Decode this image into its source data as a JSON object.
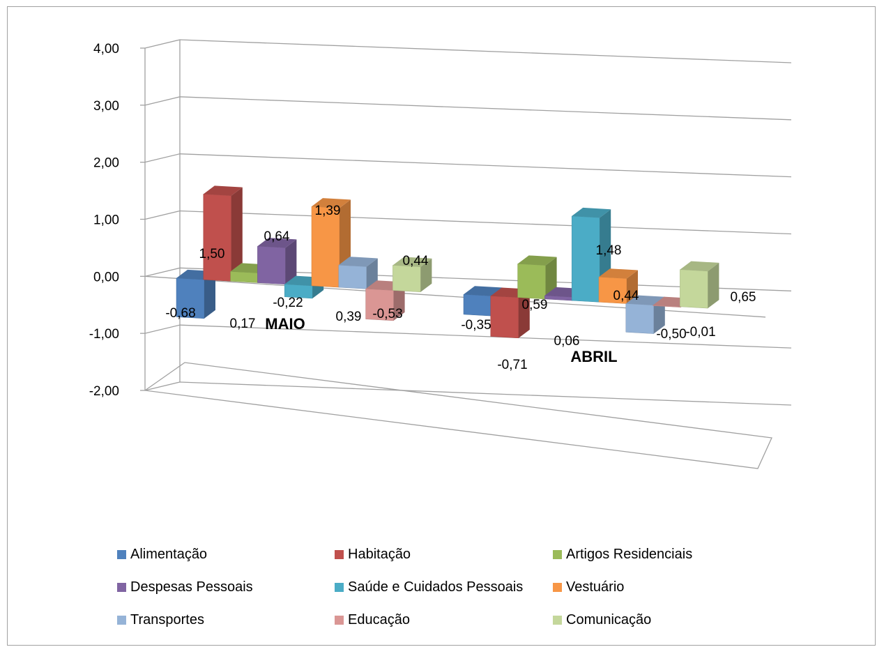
{
  "chart_data": {
    "type": "bar",
    "title": "",
    "xlabel": "",
    "ylabel": "",
    "ylim": [
      -2,
      4
    ],
    "yticks": [
      "4,00",
      "3,00",
      "2,00",
      "1,00",
      "0,00",
      "-1,00",
      "-2,00"
    ],
    "categories": [
      "MAIO",
      "ABRIL"
    ],
    "series": [
      {
        "name": "Alimentação",
        "color": "#4f81bd",
        "values": [
          -0.68,
          -0.35
        ],
        "labels": [
          "-0,68",
          "-0,35"
        ]
      },
      {
        "name": "Habitação",
        "color": "#c0504d",
        "values": [
          1.5,
          -0.71
        ],
        "labels": [
          "1,50",
          "-0,71"
        ]
      },
      {
        "name": "Artigos Residenciais",
        "color": "#9bbb59",
        "values": [
          0.17,
          0.59
        ],
        "labels": [
          "0,17",
          "0,59"
        ]
      },
      {
        "name": "Despesas Pessoais",
        "color": "#8064a2",
        "values": [
          0.64,
          0.06
        ],
        "labels": [
          "0,64",
          "0,06"
        ]
      },
      {
        "name": "Saúde e Cuidados Pessoais",
        "color": "#4bacc6",
        "values": [
          -0.22,
          1.48
        ],
        "labels": [
          "-0,22",
          "1,48"
        ]
      },
      {
        "name": "Vestuário",
        "color": "#f79646",
        "values": [
          1.39,
          0.44
        ],
        "labels": [
          "1,39",
          "0,44"
        ]
      },
      {
        "name": "Transportes",
        "color": "#95b3d7",
        "values": [
          0.39,
          -0.5
        ],
        "labels": [
          "0,39",
          "-0,50"
        ]
      },
      {
        "name": "Educação",
        "color": "#da9694",
        "values": [
          -0.53,
          -0.01
        ],
        "labels": [
          "-0,53",
          "-0,01"
        ]
      },
      {
        "name": "Comunicação",
        "color": "#c4d79b",
        "values": [
          0.44,
          0.65
        ],
        "labels": [
          "0,44",
          "0,65"
        ]
      }
    ],
    "grid": true,
    "legend_position": "bottom"
  }
}
